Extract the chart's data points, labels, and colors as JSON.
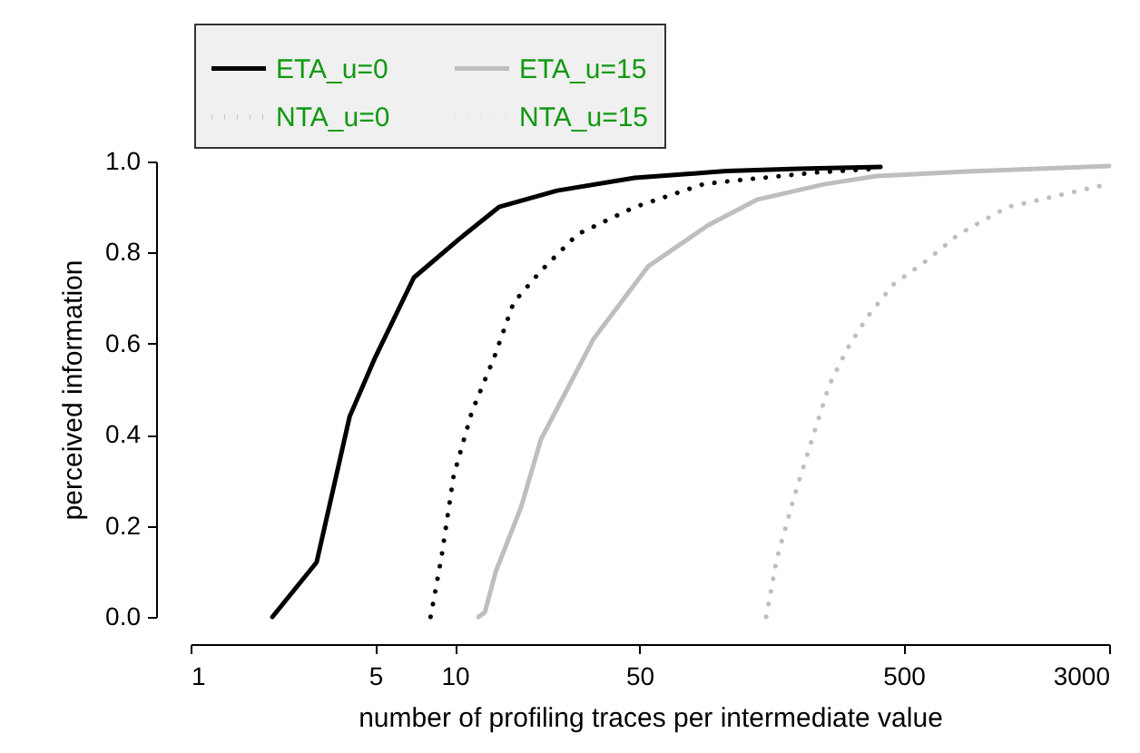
{
  "chart_data": {
    "type": "line",
    "xlabel": "number of profiling traces per intermediate value",
    "ylabel": "perceived information",
    "log": "x",
    "xlim": [
      1,
      3000
    ],
    "xticks": [
      1,
      5,
      10,
      50,
      500,
      3000
    ],
    "ylim": [
      0,
      1
    ],
    "yticks": [
      {
        "value": 0,
        "label": "0.0"
      },
      {
        "value": 0.2,
        "label": "0.2"
      },
      {
        "value": 0.4,
        "label": "0.4"
      },
      {
        "value": 0.6,
        "label": "0.6"
      },
      {
        "value": 0.8,
        "label": "0.8"
      },
      {
        "value": 1,
        "label": "1.0"
      }
    ],
    "grid": false,
    "legend": "top",
    "marker": "none",
    "series": [
      {
        "name": "ETA_u=0",
        "color": "#000000",
        "line_style": "solid",
        "x": [
          2.04,
          3.0,
          4.0,
          5.0,
          7.0,
          10.4,
          14.7,
          24.4,
          48,
          91,
          107,
          200,
          409
        ],
        "values": [
          0,
          0.12,
          0.44,
          0.57,
          0.745,
          0.83,
          0.9,
          0.936,
          0.964,
          0.976,
          0.979,
          0.984,
          0.988
        ]
      },
      {
        "name": "ETA_u=15",
        "color": "#bebebe",
        "line_style": "solid",
        "x": [
          12.3,
          13.0,
          14.3,
          17.8,
          21.2,
          33.5,
          54,
          91,
          139,
          250,
          396,
          873,
          3000
        ],
        "values": [
          0,
          0.01,
          0.1,
          0.24,
          0.39,
          0.61,
          0.77,
          0.86,
          0.916,
          0.95,
          0.968,
          0.978,
          0.99
        ]
      },
      {
        "name": "NTA_u=0",
        "color": "#000000",
        "line_style": "dotted",
        "x": [
          8.1,
          8.9,
          9.9,
          11.6,
          14.1,
          16.7,
          21.2,
          29.1,
          48,
          87,
          106,
          235,
          390
        ],
        "values": [
          0,
          0.13,
          0.31,
          0.45,
          0.57,
          0.69,
          0.76,
          0.84,
          0.9,
          0.95,
          0.956,
          0.976,
          0.984
        ]
      },
      {
        "name": "NTA_u=15",
        "color": "#bebebe",
        "line_style": "dotted",
        "x": [
          151,
          166,
          194,
          228,
          262,
          307,
          366,
          457,
          603,
          807,
          1238,
          1755,
          2950
        ],
        "values": [
          0,
          0.13,
          0.27,
          0.4,
          0.51,
          0.59,
          0.66,
          0.73,
          0.78,
          0.84,
          0.9,
          0.92,
          0.95
        ]
      }
    ]
  }
}
